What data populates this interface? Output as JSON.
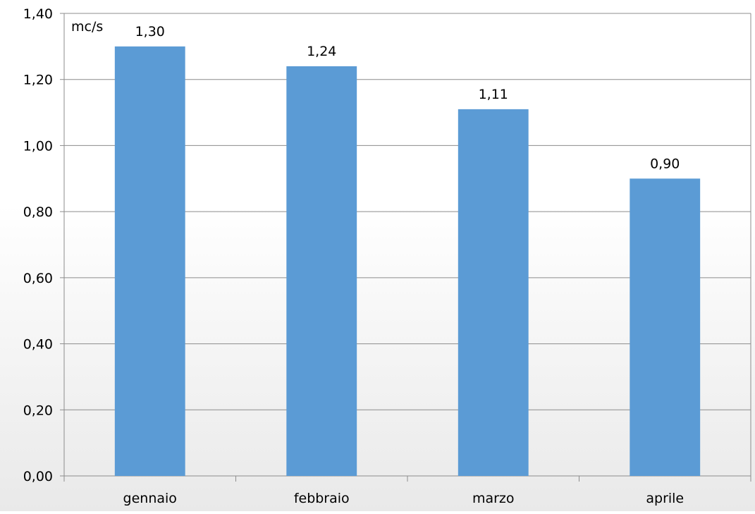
{
  "chart_data": {
    "type": "bar",
    "categories": [
      "gennaio",
      "febbraio",
      "marzo",
      "aprile"
    ],
    "values": [
      1.3,
      1.24,
      1.11,
      0.9
    ],
    "value_labels": [
      "1,30",
      "1,24",
      "1,11",
      "0,90"
    ],
    "unit_label": "mc/s",
    "title": "",
    "xlabel": "",
    "ylabel": "",
    "ylim": [
      0,
      1.4
    ],
    "yticks": [
      0,
      0.2,
      0.4,
      0.6,
      0.8,
      1.0,
      1.2,
      1.4
    ],
    "ytick_labels": [
      "0,00",
      "0,20",
      "0,40",
      "0,60",
      "0,80",
      "1,00",
      "1,20",
      "1,40"
    ],
    "grid": true,
    "legend": "none",
    "colors": {
      "bar": "#5b9bd5",
      "grid": "#8c8c8c",
      "axis": "#8c8c8c",
      "text": "#000000"
    }
  }
}
